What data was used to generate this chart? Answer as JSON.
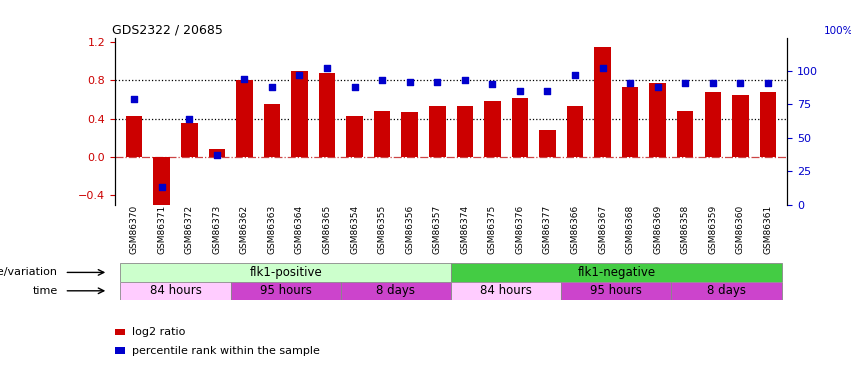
{
  "title": "GDS2322 / 20685",
  "samples": [
    "GSM86370",
    "GSM86371",
    "GSM86372",
    "GSM86373",
    "GSM86362",
    "GSM86363",
    "GSM86364",
    "GSM86365",
    "GSM86354",
    "GSM86355",
    "GSM86356",
    "GSM86357",
    "GSM86374",
    "GSM86375",
    "GSM86376",
    "GSM86377",
    "GSM86366",
    "GSM86367",
    "GSM86368",
    "GSM86369",
    "GSM86358",
    "GSM86359",
    "GSM86360",
    "GSM86361"
  ],
  "log2_ratio": [
    0.43,
    -0.55,
    0.35,
    0.08,
    0.8,
    0.55,
    0.9,
    0.88,
    0.43,
    0.48,
    0.47,
    0.53,
    0.53,
    0.59,
    0.62,
    0.28,
    0.53,
    1.15,
    0.73,
    0.77,
    0.48,
    0.68,
    0.65,
    0.68
  ],
  "percentile_pct": [
    79,
    13,
    64,
    37,
    94,
    88,
    97,
    102,
    88,
    93,
    92,
    92,
    93,
    90,
    85,
    85,
    97,
    102,
    91,
    88,
    91,
    91,
    91,
    91
  ],
  "bar_color": "#cc0000",
  "dot_color": "#0000cc",
  "ylim_left": [
    -0.5,
    1.25
  ],
  "ylim_right": [
    0,
    125
  ],
  "yticks_left": [
    -0.4,
    0.0,
    0.4,
    0.8,
    1.2
  ],
  "yticks_right": [
    0,
    25,
    50,
    75,
    100
  ],
  "hlines_dotted": [
    0.8,
    0.4
  ],
  "hline_zero_color": "#cc4444",
  "hline_dotted_color": "#000000",
  "genotype_groups": [
    {
      "label": "flk1-positive",
      "start": 0,
      "end": 12,
      "color": "#ccffcc"
    },
    {
      "label": "flk1-negative",
      "start": 12,
      "end": 24,
      "color": "#44cc44"
    }
  ],
  "time_groups": [
    {
      "label": "84 hours",
      "start": 0,
      "end": 4,
      "color": "#ffccff"
    },
    {
      "label": "95 hours",
      "start": 4,
      "end": 8,
      "color": "#cc44cc"
    },
    {
      "label": "8 days",
      "start": 8,
      "end": 12,
      "color": "#cc44cc"
    },
    {
      "label": "84 hours",
      "start": 12,
      "end": 16,
      "color": "#ffccff"
    },
    {
      "label": "95 hours",
      "start": 16,
      "end": 20,
      "color": "#cc44cc"
    },
    {
      "label": "8 days",
      "start": 20,
      "end": 24,
      "color": "#cc44cc"
    }
  ],
  "legend_items": [
    {
      "label": "log2 ratio",
      "color": "#cc0000"
    },
    {
      "label": "percentile rank within the sample",
      "color": "#0000cc"
    }
  ],
  "genotype_label": "genotype/variation",
  "time_label": "time",
  "bar_width": 0.6,
  "bg_color": "#ffffff"
}
